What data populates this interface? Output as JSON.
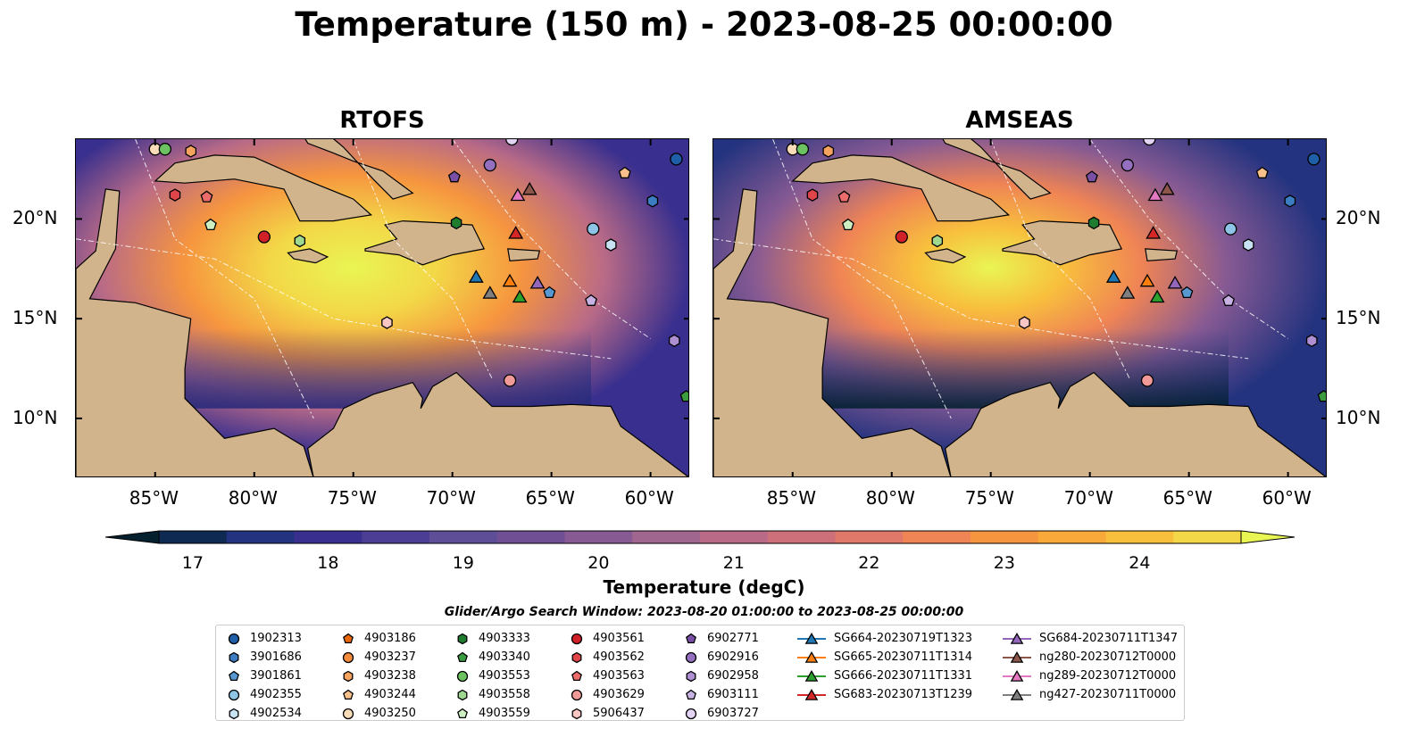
{
  "title": "Temperature (150 m) - 2023-08-25 00:00:00",
  "panels": [
    {
      "title": "RTOFS"
    },
    {
      "title": "AMSEAS"
    }
  ],
  "lon_labels": [
    "85°W",
    "80°W",
    "75°W",
    "70°W",
    "65°W",
    "60°W"
  ],
  "lat_labels": [
    "20°N",
    "15°N",
    "10°N"
  ],
  "map_extent": {
    "lon": [
      -89,
      -58
    ],
    "lat": [
      7,
      24
    ]
  },
  "colorbar": {
    "label": "Temperature (degC)",
    "ticks": [
      "17",
      "18",
      "19",
      "20",
      "21",
      "22",
      "23",
      "24"
    ],
    "tick_values": [
      17,
      18,
      19,
      20,
      21,
      22,
      23,
      24
    ],
    "range": [
      16.75,
      24.75
    ],
    "colormap": [
      "#04202f",
      "#0f2a52",
      "#24337f",
      "#382f8e",
      "#4b3e94",
      "#5e4e97",
      "#704f94",
      "#875a93",
      "#a06690",
      "#b86a87",
      "#cd7079",
      "#e1796b",
      "#ef8455",
      "#f6953f",
      "#f9a83a",
      "#f8bf3d",
      "#f3d747",
      "#e9f553"
    ],
    "extend": "both"
  },
  "legend": {
    "title": "Glider/Argo Search Window: 2023-08-20 01:00:00 to 2023-08-25 00:00:00",
    "columns": [
      [
        {
          "label": "1902313",
          "marker": "circle",
          "color": "#1f5fa8"
        },
        {
          "label": "3901686",
          "marker": "hexagon",
          "color": "#3b7dc0"
        },
        {
          "label": "3901861",
          "marker": "pentagon",
          "color": "#5898d0"
        },
        {
          "label": "4902355",
          "marker": "circle",
          "color": "#8ec4e6"
        },
        {
          "label": "4902534",
          "marker": "hexagon",
          "color": "#c9e2f3"
        }
      ],
      [
        {
          "label": "4903186",
          "marker": "pentagon",
          "color": "#e8670c"
        },
        {
          "label": "4903237",
          "marker": "circle",
          "color": "#f28b3b"
        },
        {
          "label": "4903238",
          "marker": "hexagon",
          "color": "#f5a35e"
        },
        {
          "label": "4903244",
          "marker": "pentagon",
          "color": "#f8c08a"
        },
        {
          "label": "4903250",
          "marker": "circle",
          "color": "#fbdcb8"
        }
      ],
      [
        {
          "label": "4903333",
          "marker": "hexagon",
          "color": "#1e7d2e"
        },
        {
          "label": "4903340",
          "marker": "pentagon",
          "color": "#3a9b3f"
        },
        {
          "label": "4903553",
          "marker": "circle",
          "color": "#6cc261"
        },
        {
          "label": "4903558",
          "marker": "hexagon",
          "color": "#9fd98f"
        },
        {
          "label": "4903559",
          "marker": "pentagon",
          "color": "#cdefc2"
        }
      ],
      [
        {
          "label": "4903561",
          "marker": "circle",
          "color": "#d12128"
        },
        {
          "label": "4903562",
          "marker": "hexagon",
          "color": "#e0454a"
        },
        {
          "label": "4903563",
          "marker": "pentagon",
          "color": "#ec6b6b"
        },
        {
          "label": "4903629",
          "marker": "circle",
          "color": "#f29a97"
        },
        {
          "label": "5906437",
          "marker": "hexagon",
          "color": "#f8c6c3"
        }
      ],
      [
        {
          "label": "6902771",
          "marker": "pentagon",
          "color": "#7a4fa6"
        },
        {
          "label": "6902916",
          "marker": "circle",
          "color": "#9570c0"
        },
        {
          "label": "6902958",
          "marker": "hexagon",
          "color": "#ae90d2"
        },
        {
          "label": "6903111",
          "marker": "pentagon",
          "color": "#c8b2e3"
        },
        {
          "label": "6903727",
          "marker": "circle",
          "color": "#e2d4f2"
        }
      ],
      [
        {
          "label": "SG664-20230719T1323",
          "marker": "triangle",
          "color": "#1f77b4"
        },
        {
          "label": "SG665-20230711T1314",
          "marker": "triangle",
          "color": "#ff7f0e"
        },
        {
          "label": "SG666-20230711T1331",
          "marker": "triangle",
          "color": "#2ca02c"
        },
        {
          "label": "SG683-20230713T1239",
          "marker": "triangle",
          "color": "#d62728"
        }
      ],
      [
        {
          "label": "SG684-20230711T1347",
          "marker": "triangle",
          "color": "#9467bd"
        },
        {
          "label": "ng280-20230712T0000",
          "marker": "triangle",
          "color": "#8c564b"
        },
        {
          "label": "ng289-20230712T0000",
          "marker": "triangle",
          "color": "#e377c2"
        },
        {
          "label": "ng427-20230711T0000",
          "marker": "triangle",
          "color": "#7f7f7f"
        }
      ]
    ]
  },
  "observations": [
    {
      "id": "1902313",
      "lon": -58.7,
      "lat": 23.0
    },
    {
      "id": "3901686",
      "lon": -59.9,
      "lat": 20.9
    },
    {
      "id": "3901861",
      "lon": -65.1,
      "lat": 16.3
    },
    {
      "id": "4902355",
      "lon": -62.9,
      "lat": 19.5
    },
    {
      "id": "4902534",
      "lon": -62.0,
      "lat": 18.7
    },
    {
      "id": "4903238",
      "lon": -83.2,
      "lat": 23.4
    },
    {
      "id": "4903244",
      "lon": -61.3,
      "lat": 22.3
    },
    {
      "id": "4903250",
      "lon": -85.0,
      "lat": 23.5
    },
    {
      "id": "4903333",
      "lon": -69.8,
      "lat": 19.8
    },
    {
      "id": "4903340",
      "lon": -58.2,
      "lat": 11.1
    },
    {
      "id": "4903553",
      "lon": -84.5,
      "lat": 23.5
    },
    {
      "id": "4903558",
      "lon": -77.7,
      "lat": 18.9
    },
    {
      "id": "4903559",
      "lon": -82.2,
      "lat": 19.7
    },
    {
      "id": "4903561",
      "lon": -79.5,
      "lat": 19.1
    },
    {
      "id": "4903562",
      "lon": -84.0,
      "lat": 21.2
    },
    {
      "id": "4903563",
      "lon": -82.4,
      "lat": 21.1
    },
    {
      "id": "4903629",
      "lon": -67.1,
      "lat": 11.9
    },
    {
      "id": "5906437",
      "lon": -73.3,
      "lat": 14.8
    },
    {
      "id": "6902771",
      "lon": -69.9,
      "lat": 22.1
    },
    {
      "id": "6902916",
      "lon": -68.1,
      "lat": 22.7
    },
    {
      "id": "6902958",
      "lon": -58.8,
      "lat": 13.9
    },
    {
      "id": "6903111",
      "lon": -63.0,
      "lat": 15.9
    },
    {
      "id": "6903727",
      "lon": -67.0,
      "lat": 24.0
    },
    {
      "id": "SG664-20230719T1323",
      "lon": -68.8,
      "lat": 17.1
    },
    {
      "id": "SG665-20230711T1314",
      "lon": -67.1,
      "lat": 16.9
    },
    {
      "id": "SG666-20230711T1331",
      "lon": -66.6,
      "lat": 16.1
    },
    {
      "id": "SG683-20230713T1239",
      "lon": -66.8,
      "lat": 19.3
    },
    {
      "id": "SG684-20230711T1347",
      "lon": -65.7,
      "lat": 16.8
    },
    {
      "id": "ng280-20230712T0000",
      "lon": -66.1,
      "lat": 21.5
    },
    {
      "id": "ng289-20230712T0000",
      "lon": -66.7,
      "lat": 21.2
    },
    {
      "id": "ng427-20230711T0000",
      "lon": -68.1,
      "lat": 16.3
    }
  ],
  "colors": {
    "land": "#d2b48c",
    "water": "#97b6e1"
  }
}
